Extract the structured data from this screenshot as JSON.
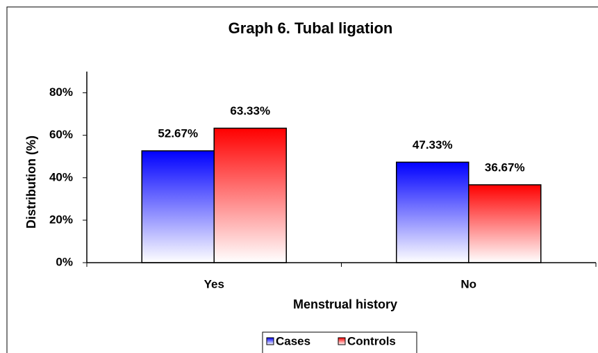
{
  "chart_data": {
    "type": "bar",
    "title": "Graph 6. Tubal ligation",
    "x_label": "Menstrual history",
    "y_label": "Distribution (%)",
    "categories": [
      "Yes",
      "No"
    ],
    "series": [
      {
        "name": "Cases",
        "color": "#0000ff",
        "values": [
          52.67,
          47.33
        ],
        "value_labels": [
          "52.67%",
          "47.33%"
        ]
      },
      {
        "name": "Controls",
        "color": "#ff0000",
        "values": [
          63.33,
          36.67
        ],
        "value_labels": [
          "63.33%",
          "36.67%"
        ]
      }
    ],
    "ylim": [
      0,
      90
    ],
    "yticks": [
      {
        "value": 0,
        "label": "0%"
      },
      {
        "value": 20,
        "label": "20%"
      },
      {
        "value": 40,
        "label": "40%"
      },
      {
        "value": 60,
        "label": "60%"
      },
      {
        "value": 80,
        "label": "80%"
      }
    ],
    "grid": false,
    "legend": "bottom"
  }
}
